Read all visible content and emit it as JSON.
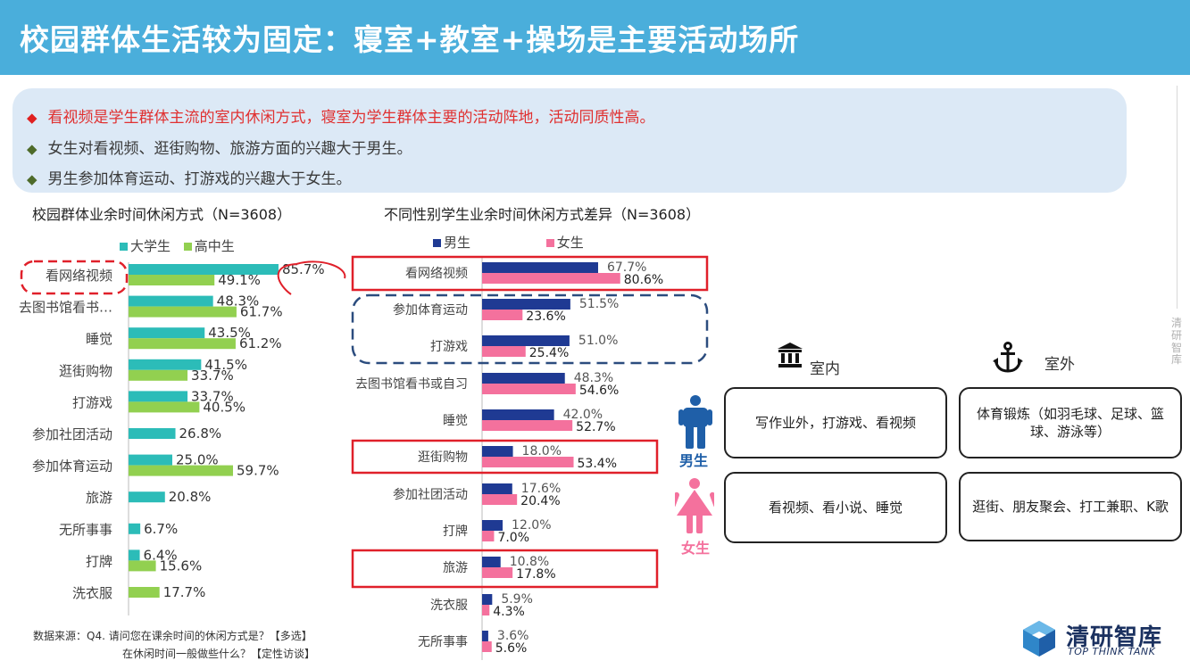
{
  "header": {
    "title": "校园群体生活较为固定：寝室+教室+操场是主要活动场所"
  },
  "summary": {
    "points": [
      {
        "marker": "◆",
        "text": "看视频是学生群体主流的室内休闲方式，寝室为学生群体主要的活动阵地，活动同质性高。"
      },
      {
        "marker": "◆",
        "text": "女生对看视频、逛街购物、旅游方面的兴趣大于男生。"
      },
      {
        "marker": "◆",
        "text": "男生参加体育运动、打游戏的兴趣大于女生。"
      }
    ]
  },
  "chart_data": [
    {
      "type": "bar",
      "orientation": "horizontal",
      "title": "校园群体业余时间休闲方式（N=3608）",
      "categories": [
        "看网络视频",
        "去图书馆看书…",
        "睡觉",
        "逛街购物",
        "打游戏",
        "参加社团活动",
        "参加体育运动",
        "旅游",
        "无所事事",
        "打牌",
        "洗衣服"
      ],
      "series": [
        {
          "name": "大学生",
          "color": "#2cbcb8",
          "values": [
            85.7,
            48.3,
            43.5,
            41.5,
            33.7,
            26.8,
            25.0,
            20.8,
            6.7,
            6.4,
            null
          ]
        },
        {
          "name": "高中生",
          "color": "#92d050",
          "values": [
            49.1,
            61.7,
            61.2,
            33.7,
            40.5,
            null,
            59.7,
            null,
            null,
            15.6,
            17.7
          ]
        }
      ],
      "legend_position": "top-left",
      "highlights": [
        "看网络视频",
        "85.7%"
      ]
    },
    {
      "type": "bar",
      "orientation": "horizontal",
      "title": "不同性别学生业余时间休闲方式差异（N=3608）",
      "categories": [
        "看网络视频",
        "参加体育运动",
        "打游戏",
        "去图书馆看书或自习",
        "睡觉",
        "逛街购物",
        "参加社团活动",
        "打牌",
        "旅游",
        "洗衣服",
        "无所事事"
      ],
      "series": [
        {
          "name": "男生",
          "color": "#1f3a93",
          "values": [
            67.7,
            51.5,
            51.0,
            48.3,
            42.0,
            18.0,
            17.6,
            12.0,
            10.8,
            5.9,
            3.6
          ]
        },
        {
          "name": "女生",
          "color": "#f4719d",
          "values": [
            80.6,
            23.6,
            25.4,
            54.6,
            52.7,
            53.4,
            20.4,
            7.0,
            17.8,
            4.3,
            5.6
          ]
        }
      ],
      "legend_position": "top",
      "highlights": [
        "看网络视频",
        "参加体育运动",
        "打游戏",
        "逛街购物",
        "旅游"
      ]
    }
  ],
  "places": {
    "indoor_label": "室内",
    "outdoor_label": "室外",
    "male_label": "男生",
    "female_label": "女生",
    "male_indoor": "写作业外，打游戏、看视频",
    "male_outdoor": "体育锻炼（如羽毛球、足球、篮球、游泳等）",
    "female_indoor": "看视频、看小说、睡觉",
    "female_outdoor": "逛街、朋友聚会、打工兼职、K歌"
  },
  "footnote": {
    "line1": "数据来源：Q4. 请问您在课余时间的休闲方式是？【多选】",
    "line2": "在休闲时间一般做些什么？【定性访谈】"
  },
  "brand": {
    "side": "清研智库",
    "name": "清研智库",
    "tagline": "TOP THINK TANK"
  },
  "colors": {
    "header": "#4aaedb",
    "summary_bg": "#dce9f6",
    "highlight": "#e0202a",
    "dashed_blue": "#2b4c7e",
    "male": "#1f3a93",
    "female": "#f4719d"
  }
}
